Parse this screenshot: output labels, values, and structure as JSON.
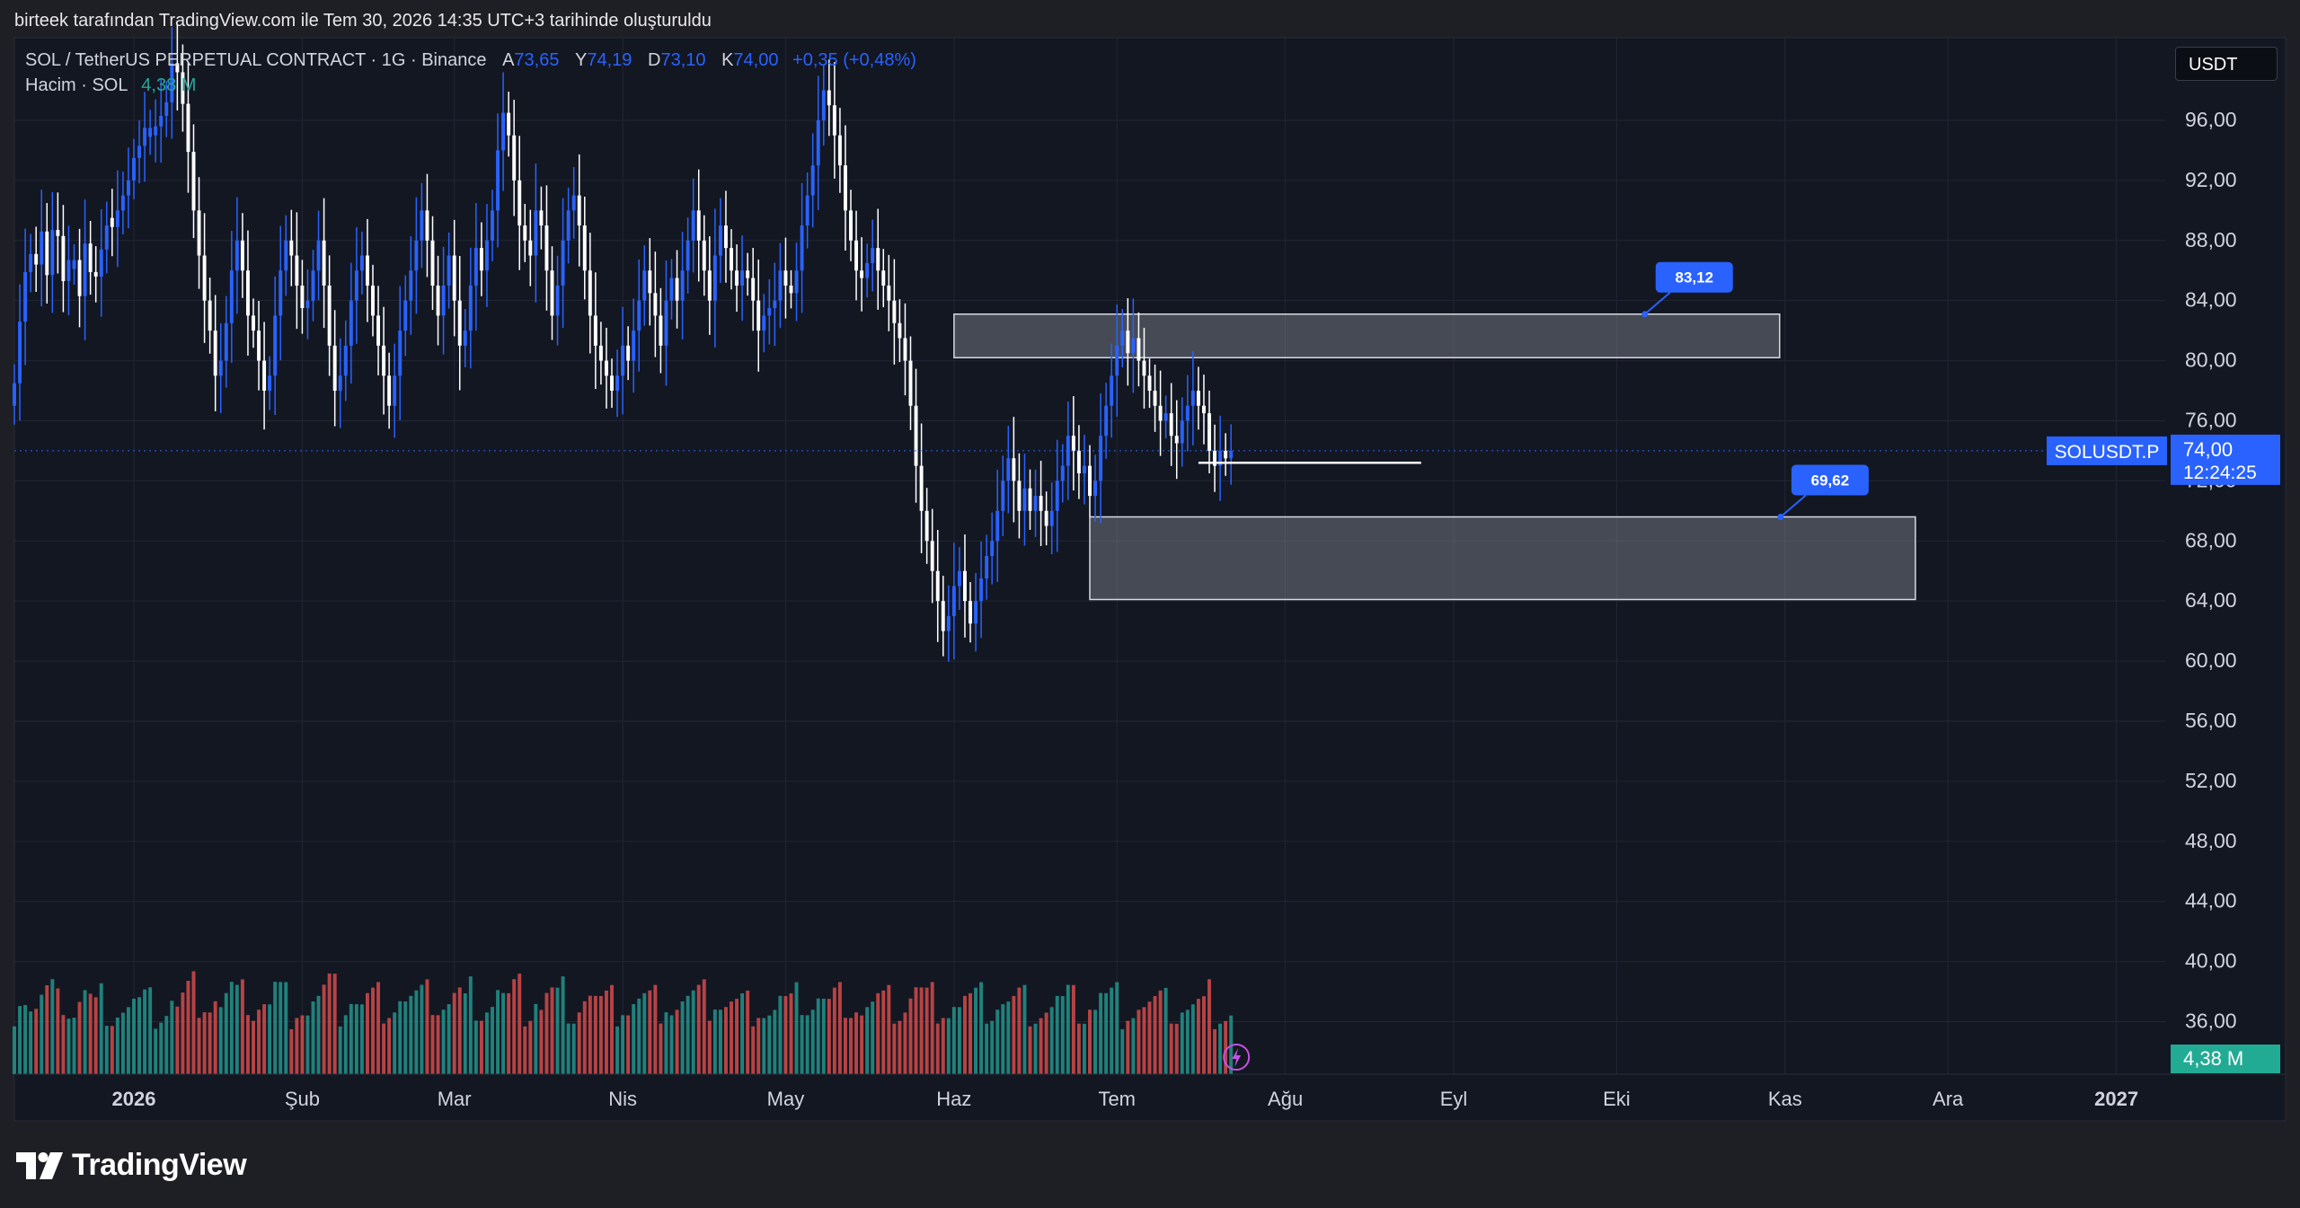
{
  "header": {
    "title": "birteek tarafından TradingView.com ile Tem 30, 2026 14:35 UTC+3 tarihinde oluşturuldu"
  },
  "legend": {
    "symbol": "SOL / TetherUS PERPETUAL CONTRACT · 1G · Binance",
    "open_label": "A",
    "open": "73,65",
    "high_label": "Y",
    "high": "74,19",
    "low_label": "D",
    "low": "73,10",
    "close_label": "K",
    "close": "74,00",
    "change": "+0,35 (+0,48%)",
    "volume_label": "Hacim · SOL",
    "volume_value": "4,38 M"
  },
  "currency": "USDT",
  "price_tag": {
    "symbol": "SOLUSDT.P",
    "price": "74,00",
    "countdown": "12:24:25"
  },
  "volume_tag": "4,38 M",
  "footer": {
    "brand": "TradingView"
  },
  "colors": {
    "background": "#131722",
    "up": "#2962ff",
    "down": "#ffffff",
    "volume_up": "#26a69a",
    "volume_down": "#ef5350",
    "accent": "#2962ff"
  },
  "chart_data": {
    "type": "candlestick",
    "y_axis": {
      "range": [
        32.5,
        101.5
      ],
      "ticks": [
        "36,00",
        "40,00",
        "44,00",
        "48,00",
        "52,00",
        "56,00",
        "60,00",
        "64,00",
        "68,00",
        "72,00",
        "76,00",
        "80,00",
        "84,00",
        "88,00",
        "92,00",
        "96,00"
      ],
      "tick_values": [
        36,
        40,
        44,
        48,
        52,
        56,
        60,
        64,
        68,
        72,
        76,
        80,
        84,
        88,
        92,
        96
      ]
    },
    "x_axis": {
      "range": [
        "2025-12-10",
        "2027-01-10"
      ],
      "labels": [
        "2026",
        "Şub",
        "Mar",
        "Nis",
        "May",
        "Haz",
        "Tem",
        "Ağu",
        "Eyl",
        "Eki",
        "Kas",
        "Ara",
        "2027"
      ],
      "label_dates": [
        "2026-01-01",
        "2026-02-01",
        "2026-03-01",
        "2026-04-01",
        "2026-05-01",
        "2026-06-01",
        "2026-07-01",
        "2026-08-01",
        "2026-09-01",
        "2026-10-01",
        "2026-11-01",
        "2026-12-01",
        "2027-01-01"
      ]
    },
    "start_date": "2025-12-10",
    "close": [
      78.5,
      82.6,
      85.9,
      87.1,
      86.4,
      88.6,
      85.7,
      88.7,
      88.3,
      85.3,
      86.7,
      86.7,
      84.3,
      87.8,
      85.9,
      85.6,
      87.4,
      89.0,
      88.9,
      90.0,
      91.0,
      92.0,
      93.5,
      94.3,
      95.5,
      95.5,
      95.6,
      96.3,
      97.2,
      99.8,
      99.2,
      97.1,
      93.9,
      90.0,
      87.0,
      84.0,
      82.0,
      79.0,
      80.0,
      82.5,
      86.0,
      88.0,
      86.0,
      83.0,
      82.0,
      80.0,
      78.0,
      79.0,
      83.0,
      86.0,
      88.0,
      87.0,
      85.0,
      83.5,
      84.0,
      86.0,
      88.0,
      85.0,
      81.0,
      78.0,
      79.0,
      81.0,
      84.0,
      86.0,
      87.0,
      85.0,
      83.0,
      81.0,
      79.0,
      77.0,
      79.0,
      82.0,
      84.0,
      86.0,
      88.0,
      90.0,
      88.0,
      85.0,
      83.0,
      85.0,
      87.0,
      84.0,
      81.0,
      82.0,
      85.0,
      87.5,
      86.0,
      88.0,
      90.0,
      94.0,
      96.5,
      95.0,
      92.0,
      89.0,
      88.0,
      87.0,
      90.0,
      89.0,
      86.0,
      83.0,
      85.0,
      88.0,
      90.0,
      91.0,
      89.0,
      86.0,
      83.0,
      81.0,
      80.0,
      79.0,
      78.0,
      79.0,
      81.0,
      80.0,
      82.0,
      84.0,
      86.0,
      84.5,
      83.0,
      81.0,
      84.0,
      85.5,
      84.0,
      86.0,
      88.0,
      90.0,
      88.0,
      86.0,
      84.0,
      87.0,
      89.0,
      87.5,
      86.0,
      85.0,
      86.0,
      85.5,
      84.0,
      82.0,
      83.0,
      83.5,
      84.0,
      86.0,
      85.0,
      84.5,
      86.0,
      89.0,
      91.0,
      93.0,
      96.0,
      98.0,
      97.0,
      95.0,
      93.0,
      90.0,
      88.0,
      86.0,
      85.5,
      86.5,
      87.5,
      86.0,
      85.0,
      84.0,
      82.5,
      81.5,
      80.0,
      77.0,
      73.0,
      70.0,
      68.0,
      66.0,
      64.0,
      62.0,
      63.0,
      65.0,
      66.0,
      64.0,
      62.5,
      64.0,
      65.5,
      67.0,
      68.0,
      70.0,
      72.0,
      73.5,
      72.0,
      70.0,
      71.5,
      70.0,
      71.0,
      70.0,
      69.0,
      70.0,
      72.0,
      73.0,
      75.0,
      74.0,
      72.5,
      73.0,
      71.0,
      72.0,
      75.0,
      77.0,
      79.0,
      81.0,
      82.0,
      80.5,
      81.5,
      80.0,
      79.0,
      78.0,
      77.0,
      76.0,
      76.5,
      75.0,
      74.5,
      76.0,
      77.0,
      78.0,
      77.0,
      76.5,
      74.0,
      73.0,
      74.0,
      73.5,
      74.0
    ],
    "up": [
      1,
      1,
      1,
      1,
      0,
      1,
      0,
      1,
      0,
      0,
      1,
      1,
      0,
      1,
      0,
      0,
      1,
      1,
      0,
      1,
      1,
      1,
      1,
      1,
      1,
      1,
      1,
      1,
      1,
      1,
      0,
      0,
      0,
      0,
      0,
      0,
      0,
      0,
      1,
      1,
      1,
      1,
      0,
      0,
      0,
      0,
      0,
      1,
      1,
      1,
      1,
      0,
      0,
      0,
      1,
      1,
      1,
      0,
      0,
      0,
      1,
      1,
      1,
      1,
      1,
      0,
      0,
      0,
      0,
      0,
      1,
      1,
      1,
      1,
      1,
      1,
      0,
      0,
      0,
      1,
      1,
      0,
      0,
      1,
      1,
      1,
      0,
      1,
      1,
      1,
      1,
      0,
      0,
      0,
      0,
      0,
      1,
      0,
      0,
      0,
      1,
      1,
      1,
      1,
      0,
      0,
      0,
      0,
      0,
      0,
      0,
      1,
      1,
      0,
      1,
      1,
      1,
      0,
      0,
      0,
      1,
      1,
      0,
      1,
      1,
      1,
      0,
      0,
      0,
      1,
      1,
      0,
      0,
      0,
      1,
      0,
      0,
      0,
      1,
      1,
      1,
      1,
      0,
      0,
      1,
      1,
      1,
      1,
      1,
      1,
      0,
      0,
      0,
      0,
      0,
      0,
      0,
      1,
      1,
      0,
      0,
      0,
      0,
      0,
      0,
      0,
      0,
      0,
      0,
      0,
      0,
      0,
      1,
      1,
      1,
      0,
      0,
      1,
      1,
      1,
      1,
      1,
      1,
      1,
      0,
      0,
      1,
      0,
      1,
      0,
      0,
      1,
      1,
      1,
      1,
      0,
      0,
      1,
      0,
      1,
      1,
      1,
      1,
      1,
      1,
      0,
      1,
      0,
      0,
      0,
      0,
      0,
      1,
      0,
      0,
      1,
      1,
      1,
      0,
      0,
      0,
      0,
      1,
      0,
      1
    ],
    "volume_max_label": "4,38 M",
    "zones": [
      {
        "label": "83,12",
        "top": 83.1,
        "bottom": 80.2,
        "start": "2026-06-01",
        "end": "2026-10-31"
      },
      {
        "label": "69,62",
        "top": 69.6,
        "bottom": 64.1,
        "start": "2026-06-26",
        "end": "2026-11-25"
      }
    ],
    "support_line": {
      "value": 73.2,
      "start": "2026-07-16",
      "end": "2026-08-26"
    },
    "last_price": "74,00"
  }
}
